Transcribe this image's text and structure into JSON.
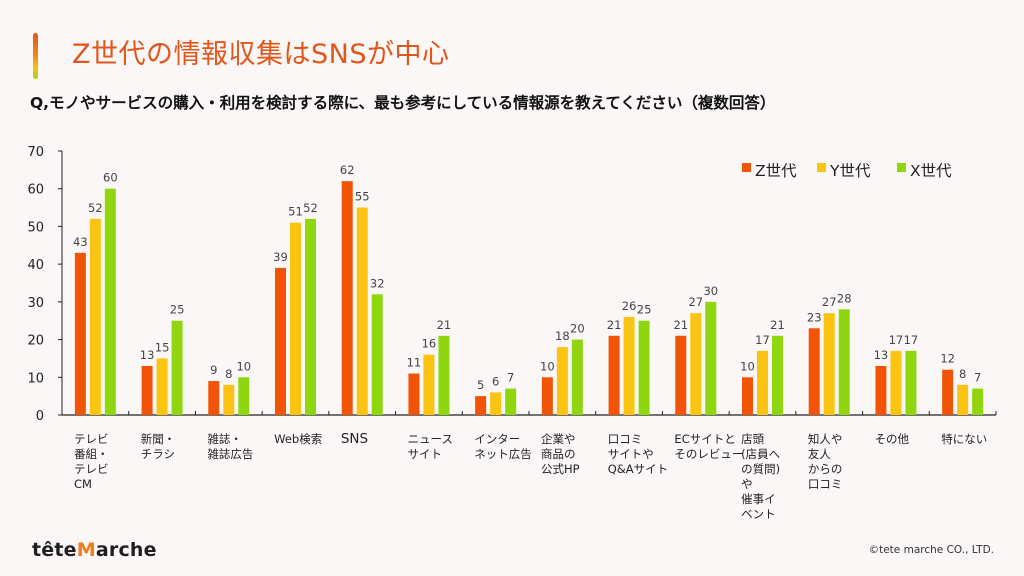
{
  "header": {
    "title": "Z世代の情報収集はSNSが中心",
    "question": "Q,モノやサービスの購入・利用を検討する際に、最も参考にしている情報源を教えてください（複数回答）"
  },
  "footer": {
    "logo_prefix": "tête",
    "logo_mark": "M",
    "logo_suffix": "arche",
    "copyright": "©tete marche CO., LTD."
  },
  "colors": {
    "z": "#f25407",
    "y": "#fbc312",
    "x": "#8fd60f",
    "title": "#e0561b"
  },
  "chart_data": {
    "type": "bar",
    "title": "Z世代の情報収集はSNSが中心",
    "xlabel": "",
    "ylabel": "",
    "ylim": [
      0,
      70
    ],
    "yticks": [
      0,
      10,
      20,
      30,
      40,
      50,
      60,
      70
    ],
    "grid": false,
    "legend_position": "top-right",
    "categories": [
      "テレビ\n番組・\nテレビ\nCM",
      "新聞・\nチラシ",
      "雑誌・\n雑誌広告",
      "Web検索",
      "SNS",
      "ニュース\nサイト",
      "インター\nネット広告",
      "企業や\n商品の\n公式HP",
      "口コミ\nサイトや\nQ&Aサイト",
      "ECサイトと\nそのレビュー",
      "店頭\n(店員へ\nの質問)\nや\n催事イ\nベント",
      "知人や\n友人\nからの\n口コミ",
      "その他",
      "特にない"
    ],
    "series": [
      {
        "name": "Z世代",
        "key": "z",
        "values": [
          43,
          13,
          9,
          39,
          62,
          11,
          5,
          10,
          21,
          21,
          10,
          23,
          13,
          12
        ]
      },
      {
        "name": "Y世代",
        "key": "y",
        "values": [
          52,
          15,
          8,
          51,
          55,
          16,
          6,
          18,
          26,
          27,
          17,
          27,
          17,
          8
        ]
      },
      {
        "name": "X世代",
        "key": "x",
        "values": [
          60,
          25,
          10,
          52,
          32,
          21,
          7,
          20,
          25,
          30,
          21,
          28,
          17,
          7
        ]
      }
    ]
  }
}
